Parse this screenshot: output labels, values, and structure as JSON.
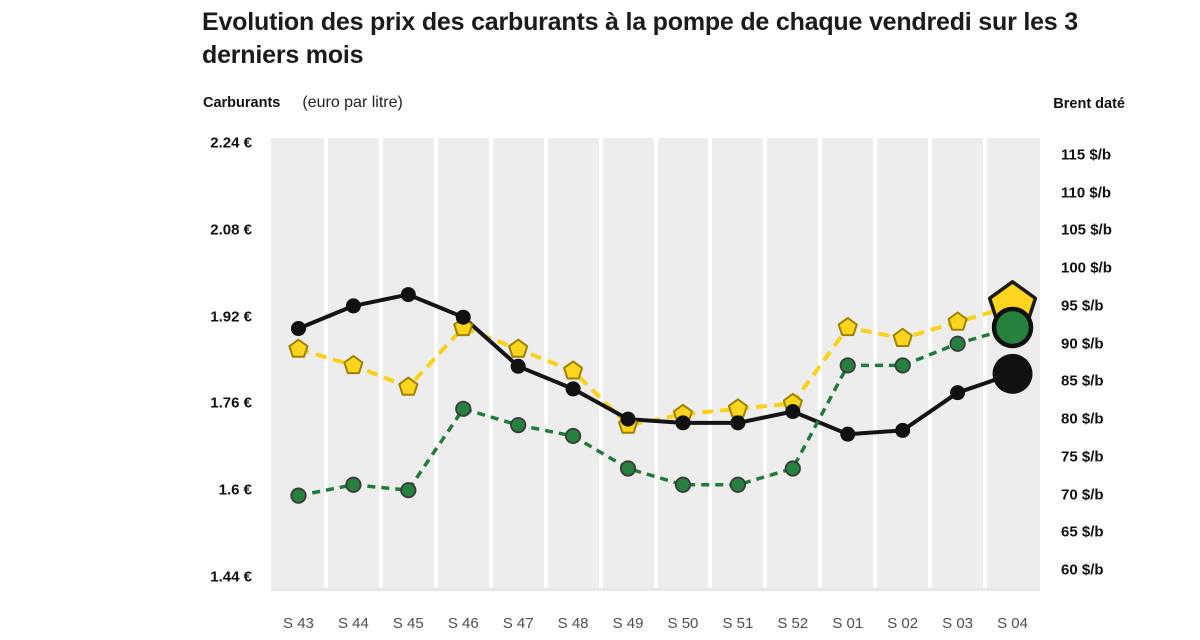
{
  "header": {
    "title": "Evolution des prix des carburants à la pompe de chaque vendredi sur les 3\nderniers mois"
  },
  "axes": {
    "left": {
      "title": "Carburants",
      "unit": "(euro par litre)",
      "tick_labels": [
        "2.24 €",
        "2.08 €",
        "1.92 €",
        "1.76 €",
        "1.6 €",
        "1.44 €"
      ],
      "tick_values": [
        2.24,
        2.08,
        1.92,
        1.76,
        1.6,
        1.44
      ]
    },
    "right": {
      "title": "Brent daté",
      "tick_labels": [
        "115 $/b",
        "110 $/b",
        "105 $/b",
        "100 $/b",
        "95 $/b",
        "90 $/b",
        "85 $/b",
        "80 $/b",
        "75 $/b",
        "70 $/b",
        "65 $/b",
        "60 $/b"
      ],
      "tick_values": [
        115,
        110,
        105,
        100,
        95,
        90,
        85,
        80,
        75,
        70,
        65,
        60
      ]
    }
  },
  "chart_data": {
    "type": "line",
    "title": "Evolution des prix des carburants à la pompe de chaque vendredi sur les 3 derniers mois",
    "categories": [
      "S 43",
      "S 44",
      "S 45",
      "S 46",
      "S 47",
      "S 48",
      "S 49",
      "S 50",
      "S 51",
      "S 52",
      "S 01",
      "S 02",
      "S 03",
      "S 04"
    ],
    "left_axis_label": "Carburants (euro par litre)",
    "right_axis_label": "Brent daté ($/b)",
    "left_axis_range": [
      1.44,
      2.24
    ],
    "right_axis_range": [
      60,
      115
    ],
    "grid": "vertical-white-bands",
    "last_point_enlarged": true,
    "series": [
      {
        "name": "carburant-jaune-pentagones",
        "axis": "left",
        "unit": "€/L",
        "marker": "pentagon",
        "dashed": true,
        "color": "#fbd018",
        "marker_fill": "#ffd41f",
        "marker_stroke": "#9a8300",
        "big_marker_stroke": "#1c1c1c",
        "values": [
          1.86,
          1.83,
          1.79,
          1.9,
          1.86,
          1.82,
          1.72,
          1.74,
          1.75,
          1.76,
          1.9,
          1.88,
          1.91,
          1.94
        ]
      },
      {
        "name": "carburant-vert-ronds",
        "axis": "left",
        "unit": "€/L",
        "marker": "circle",
        "dashed": true,
        "color": "#1f7b37",
        "marker_fill": "#26803e",
        "marker_stroke": "#3a3a3a",
        "big_marker_stroke": "#101010",
        "values": [
          1.59,
          1.61,
          1.6,
          1.75,
          1.72,
          1.7,
          1.64,
          1.61,
          1.61,
          1.64,
          1.83,
          1.83,
          1.87,
          1.9
        ]
      },
      {
        "name": "brent-date-noir",
        "axis": "right",
        "unit": "$/b",
        "marker": "circle",
        "dashed": false,
        "color": "#141414",
        "marker_fill": "#111111",
        "marker_stroke": "none",
        "big_marker_stroke": "none",
        "values": [
          92,
          95,
          96.5,
          93.5,
          87,
          84,
          80,
          79.5,
          79.5,
          81,
          78,
          78.5,
          83.5,
          86
        ]
      }
    ]
  },
  "colors": {
    "plot_background": "#ededed",
    "grid_line": "#ffffff",
    "plot_bottom_border": "#e4e8ec",
    "x_label_color": "#4f4f4f",
    "axis_label_color": "#111111",
    "title_color": "#1b1b1b"
  }
}
